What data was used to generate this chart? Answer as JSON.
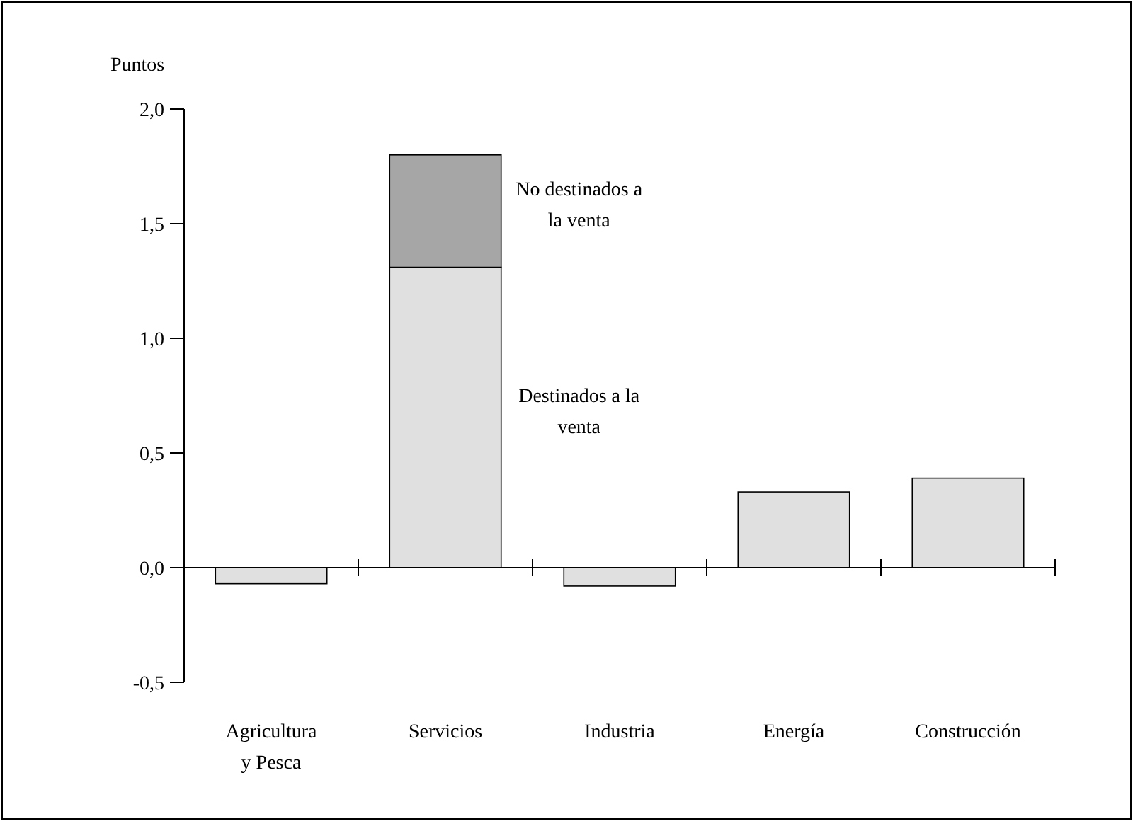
{
  "chart_data": {
    "type": "bar",
    "ylabel": "Puntos",
    "categories": [
      "Agricultura y Pesca",
      "Servicios",
      "Industria",
      "Energía",
      "Construcción"
    ],
    "stacked": true,
    "series": [
      {
        "name": "Destinados a la venta",
        "color": "#e0e0e0",
        "values": [
          -0.07,
          1.31,
          -0.08,
          0.33,
          0.39
        ]
      },
      {
        "name": "No destinados a la venta",
        "color": "#a6a6a6",
        "values": [
          null,
          0.49,
          null,
          null,
          null
        ]
      }
    ],
    "ylim": [
      -0.5,
      2.0
    ],
    "yticks": [
      {
        "value": -0.5,
        "label": "-0,5"
      },
      {
        "value": 0,
        "label": "0,0"
      },
      {
        "value": 0.5,
        "label": "0,5"
      },
      {
        "value": 1.0,
        "label": "1,0"
      },
      {
        "value": 1.5,
        "label": "1,5"
      },
      {
        "value": 2.0,
        "label": "2,0"
      }
    ],
    "legend": false
  }
}
